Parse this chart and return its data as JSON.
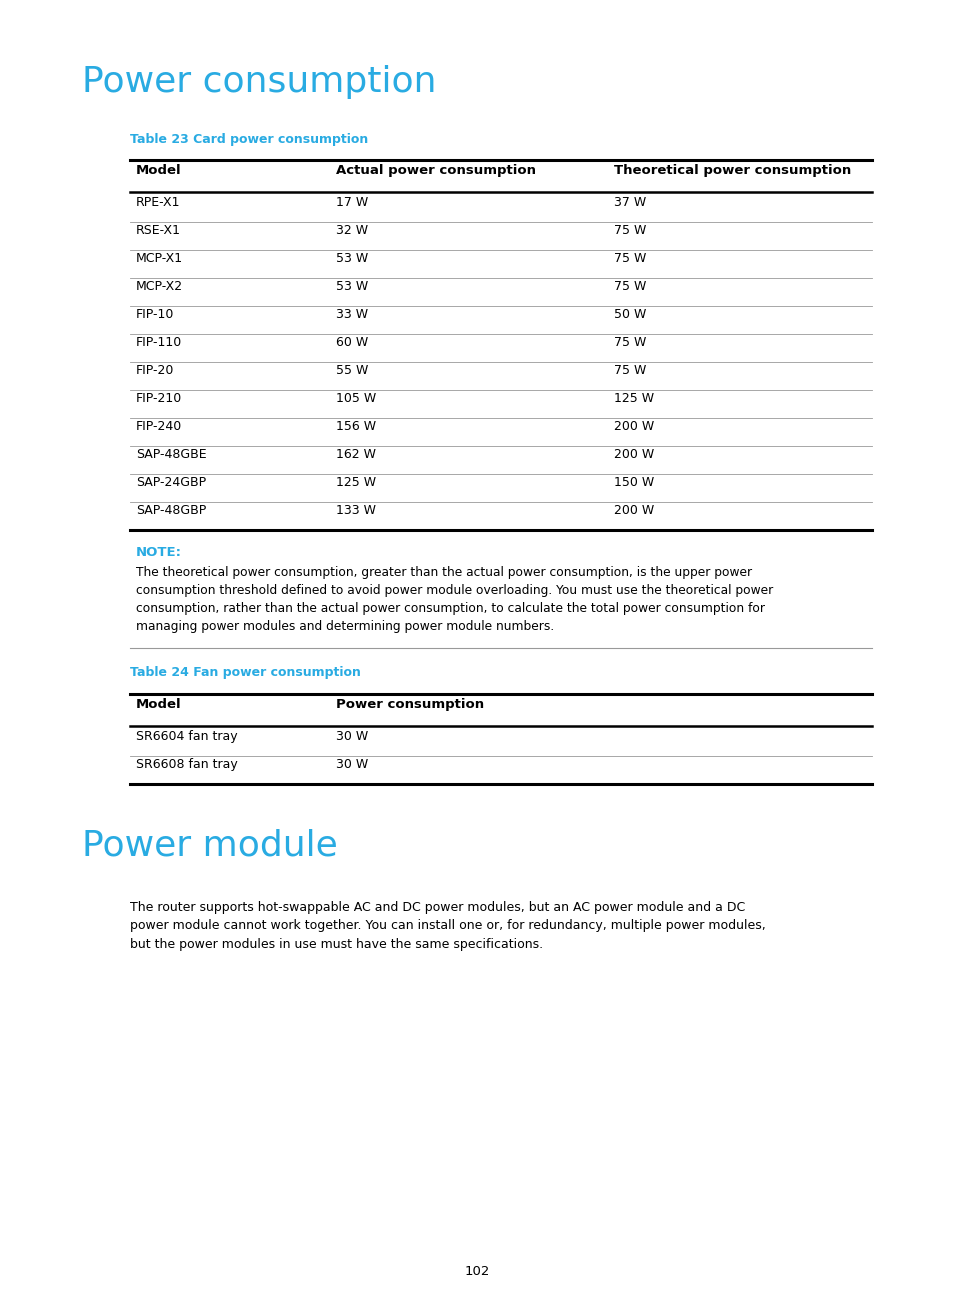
{
  "title1": "Power consumption",
  "title2": "Power module",
  "title_color": "#29ABE2",
  "table1_caption": "Table 23 Card power consumption",
  "table1_headers": [
    "Model",
    "Actual power consumption",
    "Theoretical power consumption"
  ],
  "table1_rows": [
    [
      "RPE-X1",
      "17 W",
      "37 W"
    ],
    [
      "RSE-X1",
      "32 W",
      "75 W"
    ],
    [
      "MCP-X1",
      "53 W",
      "75 W"
    ],
    [
      "MCP-X2",
      "53 W",
      "75 W"
    ],
    [
      "FIP-10",
      "33 W",
      "50 W"
    ],
    [
      "FIP-110",
      "60 W",
      "75 W"
    ],
    [
      "FIP-20",
      "55 W",
      "75 W"
    ],
    [
      "FIP-210",
      "105 W",
      "125 W"
    ],
    [
      "FIP-240",
      "156 W",
      "200 W"
    ],
    [
      "SAP-48GBE",
      "162 W",
      "200 W"
    ],
    [
      "SAP-24GBP",
      "125 W",
      "150 W"
    ],
    [
      "SAP-48GBP",
      "133 W",
      "200 W"
    ]
  ],
  "note_label": "NOTE:",
  "note_text": "The theoretical power consumption, greater than the actual power consumption, is the upper power\nconsumption threshold defined to avoid power module overloading. You must use the theoretical power\nconsumption, rather than the actual power consumption, to calculate the total power consumption for\nmanaging power modules and determining power module numbers.",
  "table2_caption": "Table 24 Fan power consumption",
  "table2_headers": [
    "Model",
    "Power consumption"
  ],
  "table2_rows": [
    [
      "SR6604 fan tray",
      "30 W"
    ],
    [
      "SR6608 fan tray",
      "30 W"
    ]
  ],
  "body_text": "The router supports hot-swappable AC and DC power modules, but an AC power module and a DC\npower module cannot work together. You can install one or, for redundancy, multiple power modules,\nbut the power modules in use must have the same specifications.",
  "page_number": "102",
  "bg_color": "#ffffff",
  "note_label_color": "#29ABE2"
}
